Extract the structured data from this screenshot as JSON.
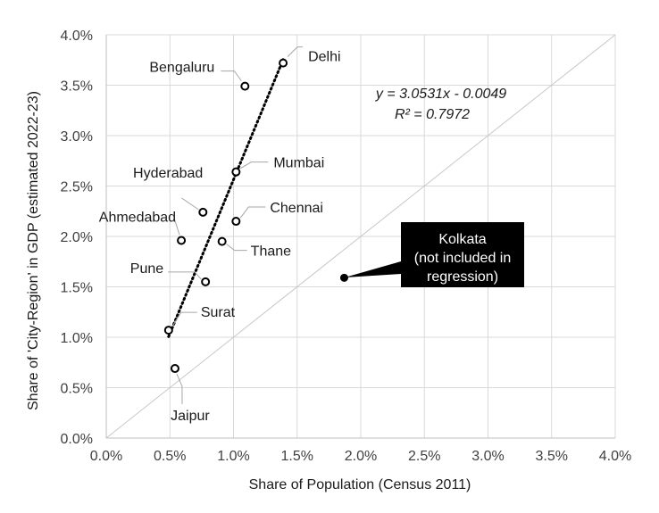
{
  "chart_data": {
    "type": "scatter",
    "xlabel": "Share of Population (Census 2011)",
    "ylabel": "Share of 'City-Region' in GDP (estimated 2022-23)",
    "xlim": [
      0,
      0.04
    ],
    "ylim": [
      0,
      0.04
    ],
    "x_ticks": [
      "0.0%",
      "0.5%",
      "1.0%",
      "1.5%",
      "2.0%",
      "2.5%",
      "3.0%",
      "3.5%",
      "4.0%"
    ],
    "y_ticks": [
      "0.0%",
      "0.5%",
      "1.0%",
      "1.5%",
      "2.0%",
      "2.5%",
      "3.0%",
      "3.5%",
      "4.0%"
    ],
    "grid": true,
    "reference_line": "y = x",
    "points": [
      {
        "label": "Delhi",
        "x": 0.0139,
        "y": 0.0372
      },
      {
        "label": "Bengaluru",
        "x": 0.0109,
        "y": 0.0349
      },
      {
        "label": "Mumbai",
        "x": 0.0102,
        "y": 0.0264
      },
      {
        "label": "Hyderabad",
        "x": 0.0076,
        "y": 0.0224
      },
      {
        "label": "Chennai",
        "x": 0.0102,
        "y": 0.0215
      },
      {
        "label": "Ahmedabad",
        "x": 0.0059,
        "y": 0.0196
      },
      {
        "label": "Thane",
        "x": 0.0091,
        "y": 0.0195
      },
      {
        "label": "Pune",
        "x": 0.0078,
        "y": 0.0155
      },
      {
        "label": "Surat",
        "x": 0.0049,
        "y": 0.0107
      },
      {
        "label": "Jaipur",
        "x": 0.0054,
        "y": 0.0069
      }
    ],
    "excluded_point": {
      "label": "Kolkata",
      "x": 0.0187,
      "y": 0.0159
    },
    "callout_lines": [
      "Kolkata",
      "(not included in",
      "regression)"
    ],
    "trendline": {
      "slope": 3.0531,
      "intercept": -0.0049,
      "x_range": [
        0.0049,
        0.0139
      ]
    },
    "equation": "y = 3.0531x - 0.0049",
    "r_squared": "R² = 0.7972"
  }
}
